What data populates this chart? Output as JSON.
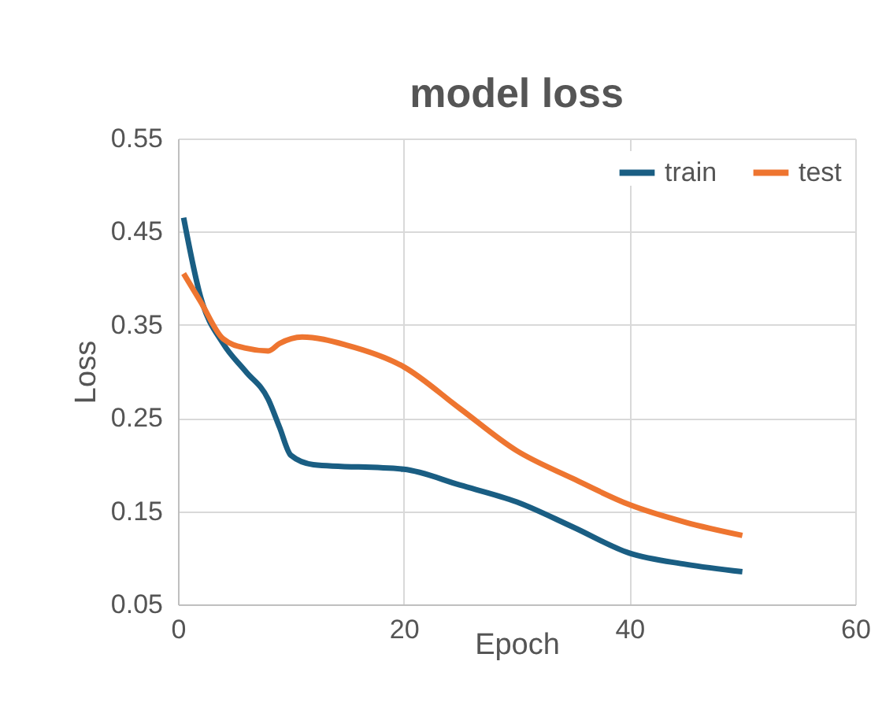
{
  "chart_data": {
    "type": "line",
    "title": "model loss",
    "xlabel": "Epoch",
    "ylabel": "Loss",
    "xlim": [
      0,
      60
    ],
    "xticks": [
      0,
      20,
      40,
      60
    ],
    "ylim": [
      0.05,
      0.55
    ],
    "yticks": [
      0.05,
      0.15,
      0.25,
      0.35,
      0.45,
      0.55
    ],
    "grid": true,
    "legend": "top right",
    "marker": "none",
    "line_style": "solid",
    "series": [
      {
        "name": "train",
        "color": "#1a5e83",
        "x": [
          0.5,
          2,
          4,
          6,
          8,
          9,
          10,
          12,
          20,
          25,
          30,
          35,
          40,
          45,
          50
        ],
        "values": [
          0.465,
          0.38,
          0.33,
          0.3,
          0.27,
          0.24,
          0.21,
          0.2,
          0.195,
          0.178,
          0.16,
          0.133,
          0.105,
          0.093,
          0.085
        ]
      },
      {
        "name": "test",
        "color": "#ee7530",
        "x": [
          0.5,
          2,
          4,
          6,
          8,
          9,
          11,
          15,
          20,
          25,
          30,
          35,
          40,
          45,
          50
        ],
        "values": [
          0.405,
          0.375,
          0.335,
          0.325,
          0.322,
          0.33,
          0.337,
          0.328,
          0.305,
          0.26,
          0.215,
          0.185,
          0.157,
          0.138,
          0.124
        ]
      }
    ]
  }
}
